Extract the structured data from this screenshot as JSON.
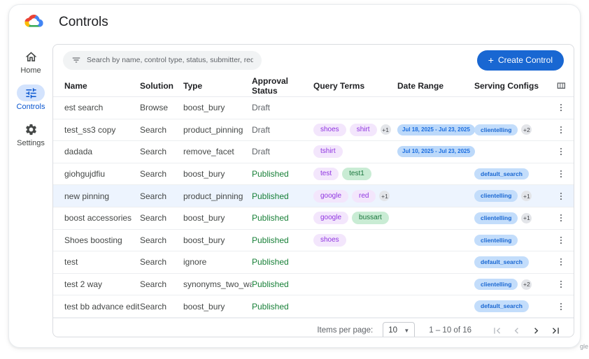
{
  "page": {
    "title": "Controls"
  },
  "sidebar": {
    "items": [
      {
        "label": "Home",
        "icon": "home-icon",
        "active": false
      },
      {
        "label": "Controls",
        "icon": "tune-icon",
        "active": true
      },
      {
        "label": "Settings",
        "icon": "gear-icon",
        "active": false
      }
    ]
  },
  "toolbar": {
    "search_placeholder": "Search by name, control type, status, submitter, requested on",
    "create_button_label": "Create Control",
    "create_button_plus": "+"
  },
  "table": {
    "columns": [
      "Name",
      "Solution",
      "Type",
      "Approval Status",
      "Query Terms",
      "Date Range",
      "Serving Configs"
    ],
    "rows": [
      {
        "name": "est search",
        "solution": "Browse",
        "type": "boost_bury",
        "status": "Draft",
        "query_terms": [],
        "query_more": null,
        "date_range": null,
        "serving": [],
        "serving_more": null,
        "highlighted": false
      },
      {
        "name": "test_ss3 copy",
        "solution": "Search",
        "type": "product_pinning",
        "status": "Draft",
        "query_terms": [
          {
            "text": "shoes",
            "color": "purple"
          },
          {
            "text": "shirt",
            "color": "purple"
          }
        ],
        "query_more": "+1",
        "date_range": "Jul 18, 2025 - Jul 23, 2025",
        "serving": [
          "clientelling"
        ],
        "serving_more": "+2",
        "highlighted": false
      },
      {
        "name": "dadada",
        "solution": "Search",
        "type": "remove_facet",
        "status": "Draft",
        "query_terms": [
          {
            "text": "tshirt",
            "color": "purple"
          }
        ],
        "query_more": null,
        "date_range": "Jul 10, 2025 - Jul 23, 2025",
        "serving": [],
        "serving_more": null,
        "highlighted": false
      },
      {
        "name": "giohgujdfiu",
        "solution": "Search",
        "type": "boost_bury",
        "status": "Published",
        "query_terms": [
          {
            "text": "test",
            "color": "purple"
          },
          {
            "text": "test1",
            "color": "green"
          }
        ],
        "query_more": null,
        "date_range": null,
        "serving": [
          "default_search"
        ],
        "serving_more": null,
        "highlighted": false
      },
      {
        "name": "new pinning",
        "solution": "Search",
        "type": "product_pinning",
        "status": "Published",
        "query_terms": [
          {
            "text": "google",
            "color": "purple"
          },
          {
            "text": "red",
            "color": "purple"
          }
        ],
        "query_more": "+1",
        "date_range": null,
        "serving": [
          "clientelling"
        ],
        "serving_more": "+1",
        "highlighted": true
      },
      {
        "name": "boost accessories",
        "solution": "Search",
        "type": "boost_bury",
        "status": "Published",
        "query_terms": [
          {
            "text": "google",
            "color": "purple"
          },
          {
            "text": "bussart",
            "color": "green"
          }
        ],
        "query_more": null,
        "date_range": null,
        "serving": [
          "clientelling"
        ],
        "serving_more": "+1",
        "highlighted": false
      },
      {
        "name": "Shoes boosting",
        "solution": "Search",
        "type": "boost_bury",
        "status": "Published",
        "query_terms": [
          {
            "text": "shoes",
            "color": "purple"
          }
        ],
        "query_more": null,
        "date_range": null,
        "serving": [
          "clientelling"
        ],
        "serving_more": null,
        "highlighted": false
      },
      {
        "name": "test",
        "solution": "Search",
        "type": "ignore",
        "status": "Published",
        "query_terms": [],
        "query_more": null,
        "date_range": null,
        "serving": [
          "default_search"
        ],
        "serving_more": null,
        "highlighted": false
      },
      {
        "name": "test 2 way",
        "solution": "Search",
        "type": "synonyms_two_way",
        "status": "Published",
        "query_terms": [],
        "query_more": null,
        "date_range": null,
        "serving": [
          "clientelling"
        ],
        "serving_more": "+2",
        "highlighted": false
      },
      {
        "name": "test bb advance editor",
        "solution": "Search",
        "type": "boost_bury",
        "status": "Published",
        "query_terms": [],
        "query_more": null,
        "date_range": null,
        "serving": [
          "default_search"
        ],
        "serving_more": null,
        "highlighted": false
      }
    ]
  },
  "pagination": {
    "items_per_page_label": "Items per page:",
    "page_size": "10",
    "range_text": "1 – 10 of 16",
    "first_enabled": false,
    "prev_enabled": false,
    "next_enabled": true,
    "last_enabled": true
  },
  "colors": {
    "accent": "#1967d2",
    "active_pill": "#d3e3fd",
    "published": "#188038",
    "draft": "#5f6368",
    "chip_purple_bg": "#f3e6fc",
    "chip_purple_text": "#8f34e0",
    "chip_green_bg": "#c9ecd4",
    "chip_green_text": "#19753c",
    "chip_blue_bg": "#c3ddfb",
    "chip_blue_text": "#1967d2",
    "row_highlight": "#edf4fe"
  },
  "watermark": "gle"
}
